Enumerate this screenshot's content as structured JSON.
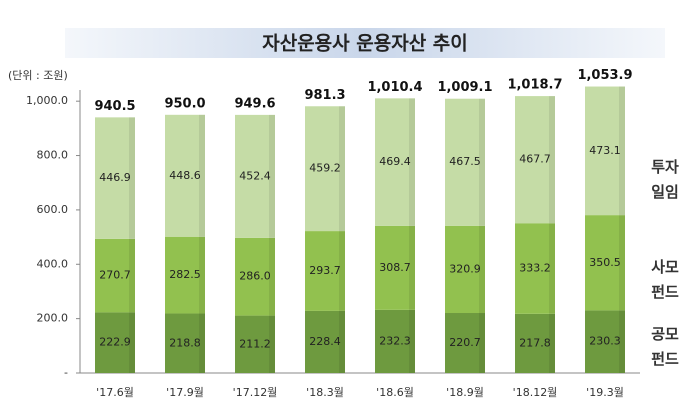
{
  "chart_data": {
    "type": "stacked_bar",
    "title": "자산운용사 운용자산 추이",
    "unit_label": "(단위 : 조원)",
    "categories": [
      "'17.6월",
      "'17.9월",
      "'17.12월",
      "'18.3월",
      "'18.6월",
      "'18.9월",
      "'18.12월",
      "'19.3월"
    ],
    "series": [
      {
        "name": "공모펀드",
        "color": "#6e9a3f",
        "values": [
          222.9,
          218.8,
          211.2,
          228.4,
          232.3,
          220.7,
          217.8,
          230.3
        ]
      },
      {
        "name": "사모펀드",
        "color": "#92c14f",
        "values": [
          270.7,
          282.5,
          286.0,
          293.7,
          308.7,
          320.9,
          333.2,
          350.5
        ],
        "value_labels": [
          "270.7",
          "282.5",
          "286.0",
          "293.7",
          "308.7",
          "320.9",
          "333.2",
          "350.5"
        ]
      },
      {
        "name": "투자일임",
        "color": "#c5dca6",
        "values": [
          446.9,
          448.6,
          452.4,
          459.2,
          469.4,
          467.5,
          467.7,
          473.1
        ]
      }
    ],
    "totals": {
      "values": [
        940.5,
        950.0,
        949.6,
        981.3,
        1010.4,
        1009.1,
        1018.7,
        1053.9
      ],
      "value_labels": [
        "940.5",
        "950.0",
        "949.6",
        "981.3",
        "1,010.4",
        "1,009.1",
        "1,018.7",
        "1,053.9"
      ]
    },
    "ylim": [
      0,
      1100
    ],
    "yticks": [
      {
        "value": 0,
        "label": "-"
      },
      {
        "value": 200,
        "label": "200.0"
      },
      {
        "value": 400,
        "label": "400.0"
      },
      {
        "value": 600,
        "label": "600.0"
      },
      {
        "value": 800,
        "label": "800.0"
      },
      {
        "value": 1000,
        "label": "1,000.0"
      }
    ]
  }
}
